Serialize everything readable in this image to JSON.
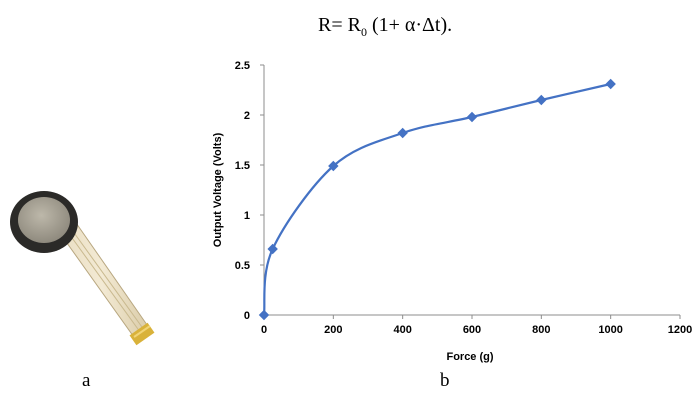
{
  "equation": {
    "lhs": "R= R",
    "subscript": "0",
    "rhs": " (1+ α·Δt)."
  },
  "panels": {
    "a": "a",
    "b": "b"
  },
  "chart_data": {
    "type": "line",
    "title": "",
    "xlabel": "Force (g)",
    "ylabel": "Output Voltage (Volts)",
    "xlim": [
      0,
      1200
    ],
    "ylim": [
      0,
      2.5
    ],
    "x_ticks": [
      "0",
      "200",
      "400",
      "600",
      "800",
      "1000",
      "1200"
    ],
    "y_ticks": [
      "0",
      "0.5",
      "1",
      "1.5",
      "2",
      "2.5"
    ],
    "grid": false,
    "legend": "none",
    "series": [
      {
        "color": "#4472c4",
        "marker": "diamond",
        "smooth": true,
        "x": [
          0,
          25,
          200,
          400,
          600,
          800,
          1000
        ],
        "y": [
          0,
          0.66,
          1.49,
          1.82,
          1.98,
          2.15,
          2.31
        ]
      }
    ]
  }
}
